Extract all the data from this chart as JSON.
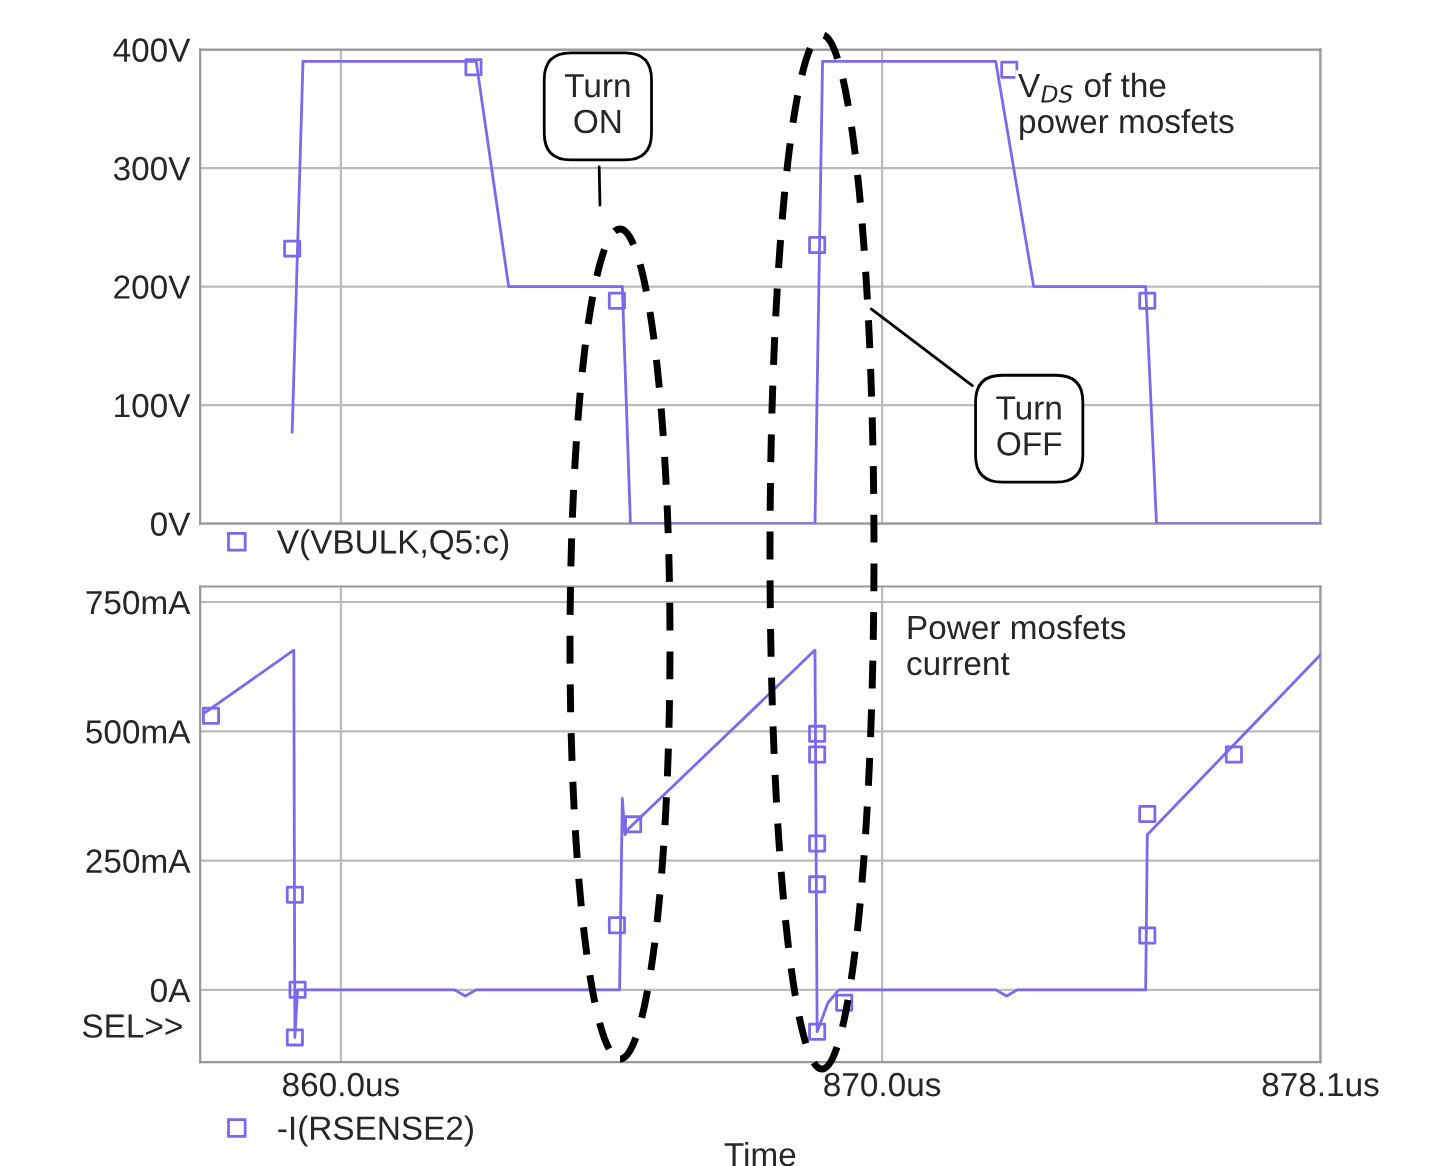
{
  "chart_data": [
    {
      "type": "line",
      "xlim": [
        857.4,
        878.1
      ],
      "xticks": [
        {
          "value": 860,
          "label": null
        },
        {
          "value": 870,
          "label": null
        },
        {
          "value": 878.1,
          "label": null
        }
      ],
      "tick_labels": "y",
      "ylim": [
        0,
        400
      ],
      "yticks": [
        {
          "value": 0,
          "label": "0V"
        },
        {
          "value": 100,
          "label": "100V"
        },
        {
          "value": 200,
          "label": "200V"
        },
        {
          "value": 300,
          "label": "300V"
        },
        {
          "value": 400,
          "label": "400V"
        }
      ],
      "grid": true,
      "legend": "bottom left",
      "marker": "none",
      "line_style": "solid",
      "series": [
        {
          "name": "V(VBULK,Q5:c)",
          "color": "#7b68ee",
          "x": [
            859.1,
            859.3,
            862.5,
            863.1,
            865.2,
            865.35,
            868.76,
            868.9,
            872.1,
            872.8,
            874.87,
            875.07,
            878.1
          ],
          "values": [
            77,
            390,
            390,
            200,
            200,
            0,
            0,
            390,
            390,
            200,
            200,
            0,
            0
          ]
        },
        {
          "type": "scatter",
          "color": "#7b68ee",
          "marker": "square",
          "x": [
            859.1,
            862.45,
            865.1,
            868.8,
            872.35,
            874.9
          ],
          "values": [
            232,
            385,
            188,
            235,
            383,
            188
          ]
        }
      ],
      "annotations": [
        "Turn ON",
        "Turn OFF",
        "V$_{DS}$ of the power mosfets"
      ]
    },
    {
      "type": "line",
      "xlim": [
        857.4,
        878.1
      ],
      "xticks": [
        {
          "value": 860,
          "label": "860.0us"
        },
        {
          "value": 870,
          "label": "870.0us"
        },
        {
          "value": 878.1,
          "label": "878.1us"
        }
      ],
      "ylim": [
        -140,
        780
      ],
      "yticks": [
        {
          "value": 0,
          "label": "0A"
        },
        {
          "value": 250,
          "label": "250mA"
        },
        {
          "value": 500,
          "label": "500mA"
        },
        {
          "value": 750,
          "label": "750mA"
        }
      ],
      "xlabel": "Time",
      "grid": true,
      "legend": "bottom left",
      "marker": "none",
      "line_style": "solid",
      "series": [
        {
          "name": "-I(RSENSE2)",
          "color": "#7b68ee",
          "x": [
            857.49,
            859.13,
            859.15,
            859.2,
            862.1,
            862.3,
            862.5,
            865.15,
            865.2,
            865.25,
            865.3,
            868.76,
            868.8,
            869.0,
            869.2,
            872.1,
            872.3,
            872.5,
            874.87,
            874.9,
            878.1
          ],
          "values": [
            536,
            657,
            -92,
            0,
            0,
            -12,
            0,
            0,
            370,
            300,
            310,
            657,
            -81,
            -25,
            0,
            0,
            -12,
            0,
            0,
            300,
            648
          ]
        },
        {
          "type": "scatter",
          "color": "#7b68ee",
          "marker": "square",
          "x": [
            857.6,
            859.15,
            859.2,
            859.15,
            865.1,
            865.4,
            868.8,
            868.8,
            868.8,
            868.8,
            868.8,
            869.3,
            874.9,
            874.9,
            876.5
          ],
          "values": [
            530,
            184,
            0,
            -92,
            125,
            320,
            495,
            455,
            283,
            204,
            -81,
            -25,
            340,
            105,
            455
          ]
        }
      ],
      "annotations": [
        "Power mosfets current",
        "SEL>>"
      ]
    }
  ]
}
